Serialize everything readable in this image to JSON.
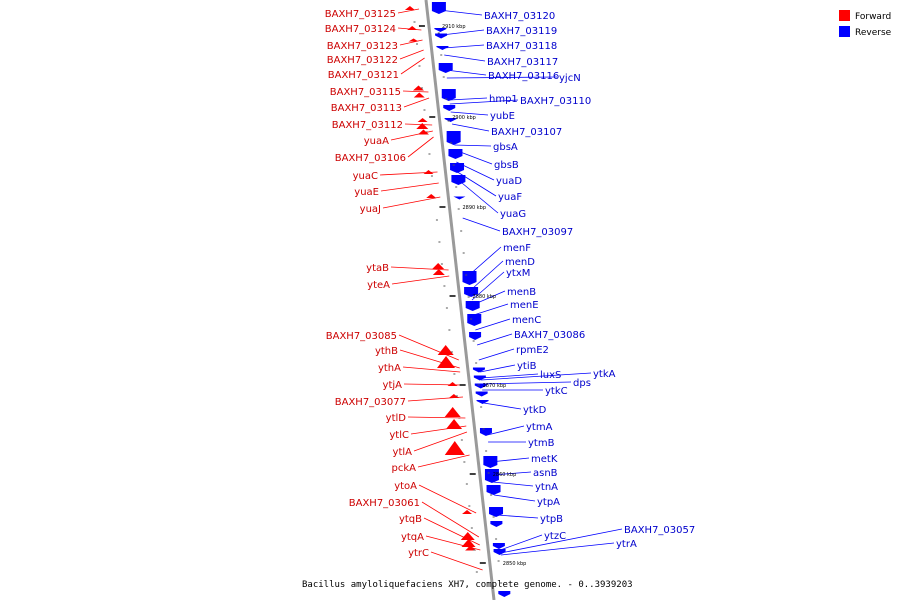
{
  "legend": [
    {
      "label": "Forward",
      "color": "#ff0000"
    },
    {
      "label": "Reverse",
      "color": "#0000ff"
    }
  ],
  "caption": "Bacillus amyloliquefaciens XH7, complete genome. - 0..3939203",
  "backbone_ticks": [
    "2910 kbp",
    "2900 kbp",
    "2890 kbp",
    "2880 kbp",
    "2870 kbp",
    "2860 kbp",
    "2850 kbp"
  ],
  "forward_genes": [
    "BAXH7_03125",
    "BAXH7_03124",
    "BAXH7_03123",
    "BAXH7_03122",
    "BAXH7_03121",
    "BAXH7_03115",
    "BAXH7_03113",
    "BAXH7_03112",
    "yuaA",
    "BAXH7_03106",
    "yuaC",
    "yuaE",
    "yuaJ",
    "ytaB",
    "yteA",
    "BAXH7_03085",
    "ythB",
    "ythA",
    "ytjA",
    "BAXH7_03077",
    "ytlD",
    "ytlC",
    "ytlA",
    "pckA",
    "ytoA",
    "BAXH7_03061",
    "ytqB",
    "ytqA",
    "ytrC"
  ],
  "reverse_genes": [
    "BAXH7_03120",
    "BAXH7_03119",
    "BAXH7_03118",
    "BAXH7_03117",
    "BAXH7_03116",
    "yjcN",
    "hmp1",
    "BAXH7_03110",
    "yubE",
    "BAXH7_03107",
    "gbsA",
    "gbsB",
    "yuaD",
    "yuaF",
    "yuaG",
    "BAXH7_03097",
    "menF",
    "menD",
    "ytxM",
    "menB",
    "menE",
    "menC",
    "BAXH7_03086",
    "rpmE2",
    "ytiB",
    "luxS",
    "dps",
    "ytkA",
    "ytkC",
    "ytkD",
    "ytmA",
    "ytmB",
    "metK",
    "asnB",
    "ytnA",
    "ytpA",
    "ytpB",
    "ytzC",
    "BAXH7_03057",
    "ytrA"
  ]
}
